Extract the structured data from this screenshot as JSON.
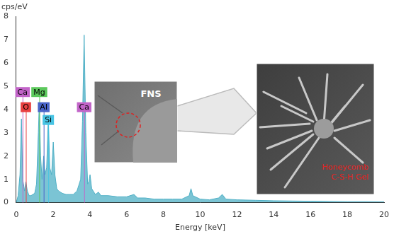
{
  "chart_data": {
    "type": "area",
    "x_label": "Energy [keV]",
    "y_label": "cps/eV",
    "x": [
      0,
      0.1,
      0.2,
      0.28,
      0.35,
      0.45,
      0.52,
      0.6,
      0.7,
      0.8,
      0.9,
      1.0,
      1.1,
      1.2,
      1.25,
      1.32,
      1.4,
      1.49,
      1.56,
      1.65,
      1.74,
      1.82,
      1.92,
      2.01,
      2.1,
      2.2,
      2.3,
      2.5,
      2.7,
      2.9,
      3.1,
      3.3,
      3.5,
      3.6,
      3.69,
      3.78,
      3.88,
      3.95,
      4.01,
      4.1,
      4.3,
      4.47,
      4.6,
      5.0,
      5.5,
      6.0,
      6.4,
      6.6,
      7.0,
      7.5,
      8.0,
      8.5,
      9.0,
      9.4,
      9.5,
      9.6,
      10.0,
      10.5,
      11.0,
      11.2,
      11.4,
      12,
      13,
      14,
      15,
      16,
      17,
      18,
      19,
      20
    ],
    "values": [
      0,
      0.3,
      1.2,
      3.6,
      1.0,
      0.5,
      0.9,
      0.5,
      0.3,
      0.3,
      0.35,
      0.4,
      0.8,
      3.0,
      4.3,
      2.0,
      1.0,
      2.0,
      1.2,
      1.5,
      3.6,
      1.5,
      1.2,
      2.6,
      1.2,
      0.6,
      0.5,
      0.4,
      0.35,
      0.35,
      0.35,
      0.5,
      1.0,
      3.5,
      7.2,
      3.0,
      0.8,
      0.9,
      1.2,
      0.6,
      0.35,
      0.45,
      0.3,
      0.3,
      0.25,
      0.25,
      0.35,
      0.2,
      0.2,
      0.15,
      0.15,
      0.15,
      0.15,
      0.3,
      0.6,
      0.3,
      0.15,
      0.12,
      0.2,
      0.35,
      0.15,
      0.12,
      0.1,
      0.08,
      0.07,
      0.06,
      0.05,
      0.04,
      0.04,
      0.03
    ],
    "color": "#4fb0c6",
    "xlim": [
      0,
      20
    ],
    "xticks": [
      0,
      2,
      4,
      6,
      8,
      10,
      12,
      14,
      16,
      18,
      20
    ],
    "ylim": [
      0,
      8
    ],
    "yticks": [
      0,
      1,
      2,
      3,
      4,
      5,
      6,
      7,
      8
    ],
    "grid": false,
    "annotations": [
      {
        "label": "Ca",
        "x": 0.34,
        "y": 4.75,
        "color": "#c264c8"
      },
      {
        "label": "O",
        "x": 0.52,
        "y": 4.1,
        "color": "#e84040"
      },
      {
        "label": "Mg",
        "x": 1.25,
        "y": 4.75,
        "color": "#5cc85c"
      },
      {
        "label": "Al",
        "x": 1.49,
        "y": 4.1,
        "color": "#4a64c8"
      },
      {
        "label": "Si",
        "x": 1.74,
        "y": 3.55,
        "color": "#48c4e4"
      },
      {
        "label": "Ca",
        "x": 3.69,
        "y": 4.1,
        "color": "#c264c8"
      }
    ],
    "images": [
      {
        "label": [
          "FNS"
        ]
      },
      {
        "label": [
          "Honeycomb",
          "C-S-H  Gel"
        ]
      }
    ]
  }
}
